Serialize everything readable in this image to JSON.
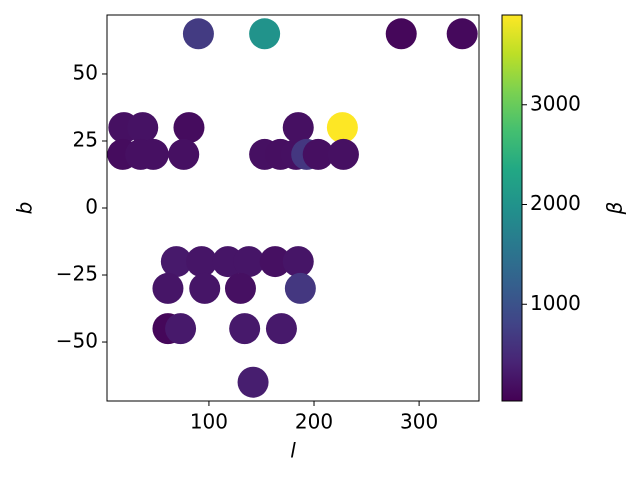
{
  "chart_data": {
    "type": "scatter",
    "x_label": "l",
    "y_label": "b",
    "colorbar_label": "β",
    "colormap": "viridis",
    "x": [
      90,
      153,
      283,
      341,
      19,
      37,
      81,
      185,
      227,
      18,
      35,
      47,
      76,
      153,
      168,
      183,
      193,
      204,
      228,
      69,
      93,
      118,
      138,
      163,
      185,
      61,
      96,
      130,
      187,
      61,
      73,
      134,
      169,
      142
    ],
    "values": [
      65,
      65,
      65,
      65,
      30,
      30,
      30,
      30,
      30,
      20,
      20,
      20,
      20,
      20,
      20,
      20,
      20,
      20,
      20,
      -20,
      -20,
      -20,
      -20,
      -20,
      -20,
      -30,
      -30,
      -30,
      -30,
      -45,
      -45,
      -45,
      -45,
      -65
    ],
    "c": [
      700,
      2000,
      100,
      120,
      200,
      220,
      150,
      200,
      3900,
      150,
      200,
      200,
      200,
      200,
      180,
      200,
      650,
      180,
      200,
      300,
      250,
      250,
      250,
      200,
      250,
      250,
      250,
      200,
      650,
      100,
      300,
      300,
      300,
      350
    ],
    "xlim": [
      3,
      357
    ],
    "ylim": [
      -72,
      72
    ],
    "clim": [
      30,
      3900
    ],
    "xticks": [
      100,
      200,
      300
    ],
    "yticks": [
      {
        "value": -50,
        "label": "−50"
      },
      {
        "value": -25,
        "label": "−25"
      },
      0,
      25,
      50
    ],
    "cticks": [
      1000,
      2000,
      3000
    ]
  }
}
